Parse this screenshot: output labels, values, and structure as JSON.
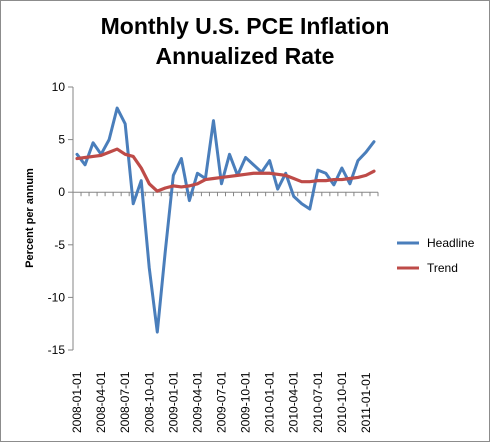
{
  "chart_data": {
    "type": "line",
    "title_line1": "Monthly U.S. PCE Inflation",
    "title_line2": "Annualized Rate",
    "ylabel": "Percent per annum",
    "xlabel": "",
    "ylim": [
      -15,
      10
    ],
    "yticks": [
      -15,
      -10,
      -5,
      0,
      5,
      10
    ],
    "grid": false,
    "legend_position": "right",
    "x": [
      "2008-01-01",
      "2008-02-01",
      "2008-03-01",
      "2008-04-01",
      "2008-05-01",
      "2008-06-01",
      "2008-07-01",
      "2008-08-01",
      "2008-09-01",
      "2008-10-01",
      "2008-11-01",
      "2008-12-01",
      "2009-01-01",
      "2009-02-01",
      "2009-03-01",
      "2009-04-01",
      "2009-05-01",
      "2009-06-01",
      "2009-07-01",
      "2009-08-01",
      "2009-09-01",
      "2009-10-01",
      "2009-11-01",
      "2009-12-01",
      "2010-01-01",
      "2010-02-01",
      "2010-03-01",
      "2010-04-01",
      "2010-05-01",
      "2010-06-01",
      "2010-07-01",
      "2010-08-01",
      "2010-09-01",
      "2010-10-01",
      "2010-11-01",
      "2010-12-01",
      "2011-01-01",
      "2011-02-01"
    ],
    "xtick_labels": [
      "2008-01-01",
      "2008-04-01",
      "2008-07-01",
      "2008-10-01",
      "2009-01-01",
      "2009-04-01",
      "2009-07-01",
      "2009-10-01",
      "2010-01-01",
      "2010-04-01",
      "2010-07-01",
      "2010-10-01",
      "2011-01-01"
    ],
    "series": [
      {
        "name": "Headline",
        "color": "#4a7ebb",
        "values": [
          3.6,
          2.6,
          4.7,
          3.6,
          5.0,
          8.0,
          6.5,
          -1.1,
          1.1,
          -7.2,
          -13.3,
          -5.6,
          1.6,
          3.2,
          -0.8,
          1.8,
          1.3,
          6.8,
          0.8,
          3.6,
          1.6,
          3.3,
          2.6,
          1.9,
          3.0,
          0.3,
          1.8,
          -0.4,
          -1.1,
          -1.6,
          2.1,
          1.8,
          0.7,
          2.3,
          0.8,
          3.0,
          3.8,
          4.8
        ]
      },
      {
        "name": "Trend",
        "color": "#be4b48",
        "values": [
          3.2,
          3.3,
          3.4,
          3.5,
          3.8,
          4.1,
          3.6,
          3.4,
          2.3,
          0.8,
          0.1,
          0.4,
          0.6,
          0.5,
          0.6,
          0.8,
          1.2,
          1.3,
          1.4,
          1.5,
          1.6,
          1.7,
          1.8,
          1.8,
          1.8,
          1.7,
          1.6,
          1.3,
          1.0,
          1.0,
          1.1,
          1.1,
          1.2,
          1.2,
          1.3,
          1.4,
          1.6,
          2.0
        ]
      }
    ]
  }
}
